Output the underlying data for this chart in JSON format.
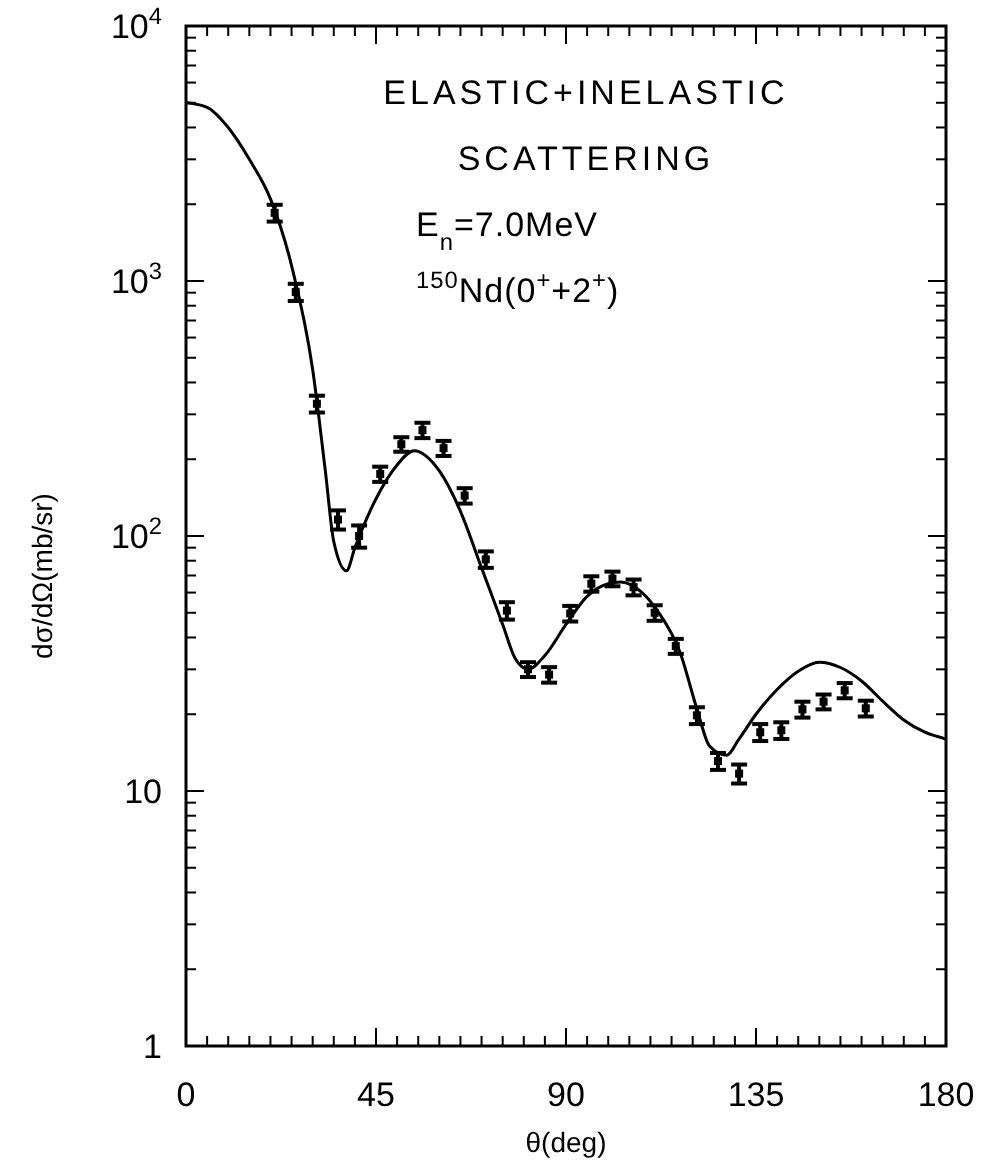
{
  "chart_data": {
    "type": "scatter",
    "xlabel": "θ(deg)",
    "ylabel": "dσ/dΩ(mb/sr)",
    "log": "y",
    "marker": "square",
    "annotations": [
      "ELASTIC+INELASTIC",
      "SCATTERING",
      "E$_{n}$=7.0MeV",
      "$^{150}$Nd(0$^{+}$+2$^{+}$)"
    ],
    "xlim": [
      0,
      180
    ],
    "ylim": [
      1,
      10000
    ],
    "xticks": [
      0,
      {
        "value": 5,
        "label": null
      },
      {
        "value": 10,
        "label": null
      },
      {
        "value": 15,
        "label": null
      },
      {
        "value": 20,
        "label": null
      },
      {
        "value": 25,
        "label": null
      },
      {
        "value": 30,
        "label": null
      },
      {
        "value": 35,
        "label": null
      },
      {
        "value": 40,
        "label": null
      },
      45,
      {
        "value": 50,
        "label": null
      },
      {
        "value": 55,
        "label": null
      },
      {
        "value": 60,
        "label": null
      },
      {
        "value": 65,
        "label": null
      },
      {
        "value": 70,
        "label": null
      },
      {
        "value": 75,
        "label": null
      },
      {
        "value": 80,
        "label": null
      },
      {
        "value": 85,
        "label": null
      },
      90,
      {
        "value": 95,
        "label": null
      },
      {
        "value": 100,
        "label": null
      },
      {
        "value": 105,
        "label": null
      },
      {
        "value": 110,
        "label": null
      },
      {
        "value": 115,
        "label": null
      },
      {
        "value": 120,
        "label": null
      },
      {
        "value": 125,
        "label": null
      },
      {
        "value": 130,
        "label": null
      },
      135,
      {
        "value": 140,
        "label": null
      },
      {
        "value": 145,
        "label": null
      },
      {
        "value": 150,
        "label": null
      },
      {
        "value": 155,
        "label": null
      },
      {
        "value": 160,
        "label": null
      },
      {
        "value": 165,
        "label": null
      },
      {
        "value": 170,
        "label": null
      },
      {
        "value": 175,
        "label": null
      },
      180
    ],
    "yticks": [
      1,
      {
        "value": 2,
        "label": null
      },
      {
        "value": 3,
        "label": null
      },
      {
        "value": 4,
        "label": null
      },
      {
        "value": 5,
        "label": null
      },
      {
        "value": 6,
        "label": null
      },
      {
        "value": 7,
        "label": null
      },
      {
        "value": 8,
        "label": null
      },
      {
        "value": 9,
        "label": null
      },
      10,
      {
        "value": 20,
        "label": null
      },
      {
        "value": 30,
        "label": null
      },
      {
        "value": 40,
        "label": null
      },
      {
        "value": 50,
        "label": null
      },
      {
        "value": 60,
        "label": null
      },
      {
        "value": 70,
        "label": null
      },
      {
        "value": 80,
        "label": null
      },
      {
        "value": 90,
        "label": null
      },
      {
        "value": 100,
        "label": "10$^{2}$"
      },
      {
        "value": 200,
        "label": null
      },
      {
        "value": 300,
        "label": null
      },
      {
        "value": 400,
        "label": null
      },
      {
        "value": 500,
        "label": null
      },
      {
        "value": 600,
        "label": null
      },
      {
        "value": 700,
        "label": null
      },
      {
        "value": 800,
        "label": null
      },
      {
        "value": 900,
        "label": null
      },
      {
        "value": 1000,
        "label": "10$^{3}$"
      },
      {
        "value": 2000,
        "label": null
      },
      {
        "value": 3000,
        "label": null
      },
      {
        "value": 4000,
        "label": null
      },
      {
        "value": 5000,
        "label": null
      },
      {
        "value": 6000,
        "label": null
      },
      {
        "value": 7000,
        "label": null
      },
      {
        "value": 8000,
        "label": null
      },
      {
        "value": 9000,
        "label": null
      },
      {
        "value": 10000,
        "label": "10$^{4}$"
      }
    ],
    "series": [
      {
        "color": "#000000",
        "x": [
          21,
          26,
          31,
          36,
          41,
          46,
          51,
          56,
          61,
          66,
          71,
          76,
          81,
          86,
          91,
          96,
          101,
          106,
          111,
          116,
          121,
          126,
          131,
          136,
          141,
          146,
          151,
          156,
          161
        ],
        "values": [
          1850,
          905,
          330,
          116,
          100,
          175,
          229,
          260,
          221,
          144,
          81,
          51,
          30,
          28.6,
          49.7,
          65,
          68,
          63,
          50,
          37,
          19.8,
          13.1,
          11.7,
          17,
          17.3,
          20.9,
          22.4,
          24.8,
          21.1
        ],
        "errors": [
          140,
          70,
          25,
          10,
          10,
          12,
          15,
          18,
          15,
          10,
          6,
          4,
          2,
          2,
          3.5,
          4.5,
          4.5,
          4.5,
          3.5,
          2.5,
          1.5,
          1,
          1,
          1.3,
          1.3,
          1.5,
          1.5,
          1.7,
          1.5
        ]
      },
      {
        "type": "line",
        "color": "#000000",
        "marker": "none",
        "x": [
          0,
          5,
          10,
          15,
          20,
          25,
          30,
          33,
          35,
          38,
          40,
          45,
          50,
          54,
          60,
          65,
          70,
          75,
          78,
          81,
          85,
          90,
          95,
          100,
          103,
          108,
          112,
          117,
          121,
          124,
          128,
          131,
          135,
          140,
          145,
          150,
          155,
          160,
          165,
          170,
          175,
          180
        ],
        "values": [
          5000,
          4800,
          4000,
          3000,
          2100,
          1150,
          450,
          180,
          95,
          73,
          90,
          140,
          190,
          216,
          180,
          125,
          75,
          45,
          33,
          30,
          34,
          45,
          58,
          65,
          66,
          60,
          50,
          35,
          21,
          15,
          13.8,
          16,
          20,
          25,
          29.5,
          32,
          30.5,
          27,
          22.5,
          19,
          17,
          16
        ]
      }
    ]
  }
}
